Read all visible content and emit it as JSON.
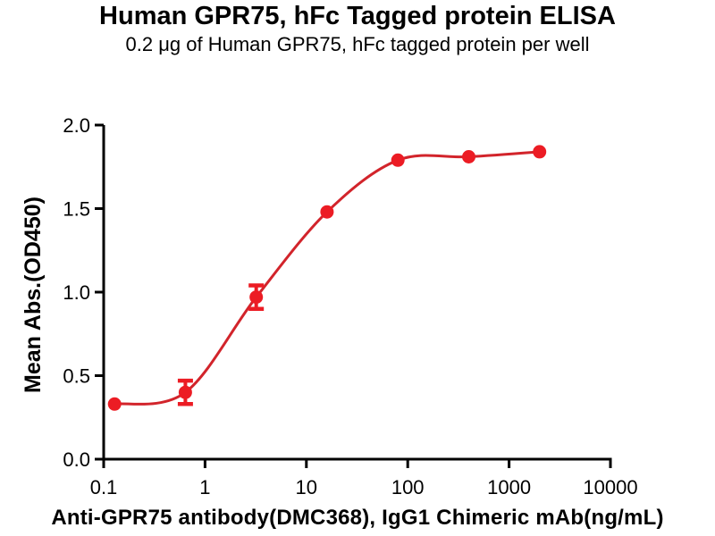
{
  "chart_data": {
    "type": "scatter",
    "title": "Human GPR75, hFc Tagged protein ELISA",
    "subtitle": "0.2 μg of Human GPR75, hFc tagged protein per well",
    "xlabel": "Anti-GPR75 antibody(DMC368), IgG1 Chimeric mAb(ng/mL)",
    "ylabel": "Mean Abs.(OD450)",
    "x_scale": "log",
    "grid": false,
    "legend": false,
    "xlim": [
      0.1,
      10000
    ],
    "ylim": [
      0,
      2
    ],
    "xtick_values": [
      0.1,
      1,
      10,
      100,
      1000,
      10000
    ],
    "xtick_labels": [
      "0.1",
      "1",
      "10",
      "100",
      "1000",
      "10000"
    ],
    "ytick_values": [
      0,
      0.5,
      1,
      1.5,
      2
    ],
    "ytick_labels": [
      "0.0",
      "0.5",
      "1.0",
      "1.5",
      "2.0"
    ],
    "x": [
      0.128,
      0.64,
      3.2,
      16,
      80,
      400,
      2000
    ],
    "y": [
      0.33,
      0.4,
      0.97,
      1.48,
      1.79,
      1.81,
      1.84
    ],
    "y_err": [
      0,
      0.07,
      0.07,
      0,
      0,
      0,
      0
    ],
    "curve_fit": "4PL sigmoid through data points",
    "colors": {
      "marker": "#ec1c24",
      "line": "#d2242b",
      "axis": "#000000",
      "text": "#000000",
      "background": "#ffffff"
    }
  }
}
